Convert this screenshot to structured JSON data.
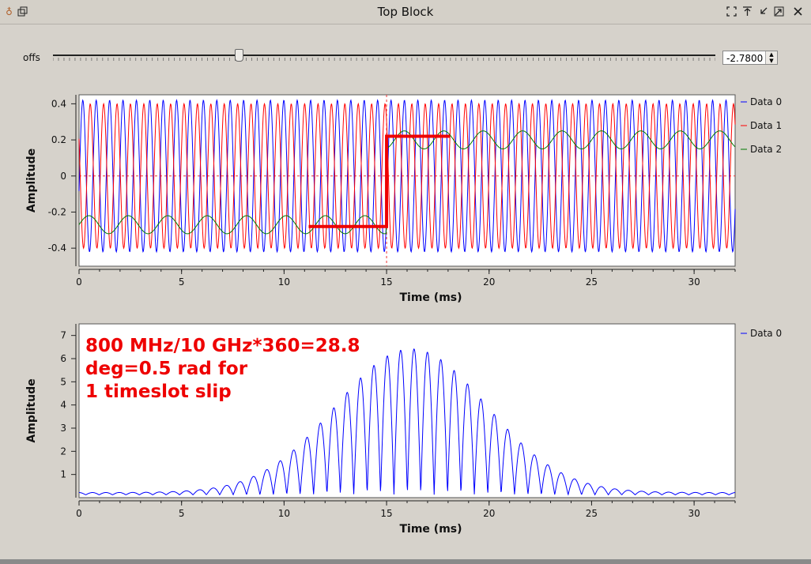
{
  "window": {
    "title": "Top Block",
    "buttons": [
      "fullscreen-icon",
      "keep-above-icon",
      "minimize-icon",
      "maximize-icon",
      "close-icon"
    ]
  },
  "slider": {
    "label": "offs",
    "value": "-2.7800",
    "position_fraction": 0.28
  },
  "annotation": {
    "lines": [
      "800 MHz/10 GHz*360=28.8",
      "deg=0.5 rad for",
      "1 timeslot slip"
    ],
    "color": "#ee0000"
  },
  "colors": {
    "data0": "#0000ff",
    "data1": "#ff0000",
    "data2": "#007a00",
    "marker": "#ee0000"
  },
  "chart_data": [
    {
      "type": "line",
      "xlabel": "Time (ms)",
      "ylabel": "Amplitude",
      "xlim": [
        0,
        32
      ],
      "ylim": [
        -0.5,
        0.45
      ],
      "xticks": [
        "0",
        "5",
        "10",
        "15",
        "20",
        "25",
        "30"
      ],
      "yticks": [
        "0.4",
        "0.2",
        "0",
        "-0.2",
        "-0.4"
      ],
      "series": [
        {
          "name": "Data 0",
          "description_freq_cycles_per_ms": 1.53,
          "amplitude": 0.42
        },
        {
          "name": "Data 1",
          "description_freq_cycles_per_ms": 1.53,
          "amplitude": 0.4
        },
        {
          "name": "Data 2",
          "description_freq_cycles_per_ms": 0.52,
          "amplitude": 0.05
        }
      ],
      "marker_line": {
        "x": [
          11.2,
          15.0,
          15.0,
          18.1
        ],
        "y": [
          -0.28,
          -0.28,
          0.22,
          0.22
        ]
      },
      "cursor": {
        "x": 15.0,
        "y": 0
      },
      "legend": "right"
    },
    {
      "type": "line",
      "xlabel": "Time (ms)",
      "ylabel": "Amplitude",
      "xlim": [
        0,
        32
      ],
      "ylim": [
        0,
        7.5
      ],
      "xticks": [
        "0",
        "5",
        "10",
        "15",
        "20",
        "25",
        "30"
      ],
      "yticks": [
        "7",
        "6",
        "5",
        "4",
        "3",
        "2",
        "1"
      ],
      "series": [
        {
          "name": "Data 0",
          "peak": 6.2,
          "peak_x": 16.2
        }
      ],
      "legend": "right"
    }
  ]
}
